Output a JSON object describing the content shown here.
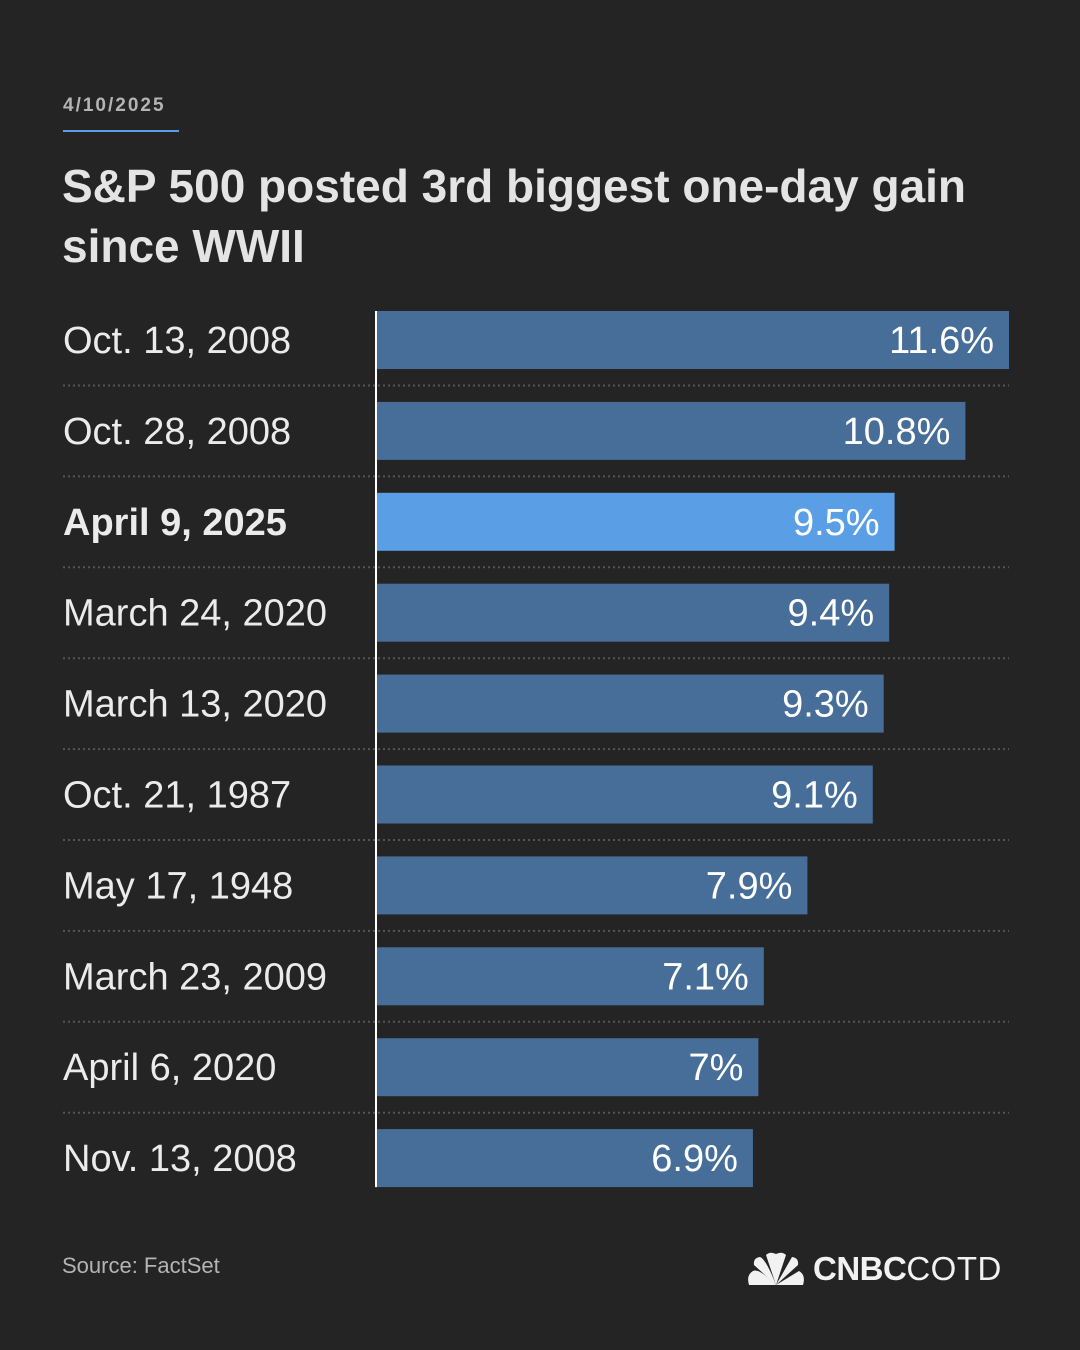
{
  "header": {
    "date": "4/10/2025",
    "title": "S&P 500 posted 3rd biggest one-day gain since WWII"
  },
  "footer": {
    "source": "Source: FactSet",
    "brand_bold": "CNBC",
    "brand_light": "COTD",
    "logo_icon": "nbc-peacock-icon"
  },
  "colors": {
    "background": "#242424",
    "bar": "#466e98",
    "highlight_bar": "#5a9fe6",
    "text": "#ebebeb"
  },
  "chart_data": {
    "type": "bar",
    "orientation": "horizontal",
    "title": "S&P 500 posted 3rd biggest one-day gain since WWII",
    "categories": [
      "Oct. 13, 2008",
      "Oct. 28, 2008",
      "April 9, 2025",
      "March 24, 2020",
      "March 13, 2020",
      "Oct. 21, 1987",
      "May 17, 1948",
      "March 23, 2009",
      "April 6, 2020",
      "Nov. 13, 2008"
    ],
    "values": [
      11.6,
      10.8,
      9.5,
      9.4,
      9.3,
      9.1,
      7.9,
      7.1,
      7,
      6.9
    ],
    "labels": [
      "11.6%",
      "10.8%",
      "9.5%",
      "9.4%",
      "9.3%",
      "9.1%",
      "7.9%",
      "7.1%",
      "7%",
      "6.9%"
    ],
    "highlight_index": 2,
    "xlim": [
      0,
      11.6
    ],
    "grid": false
  }
}
